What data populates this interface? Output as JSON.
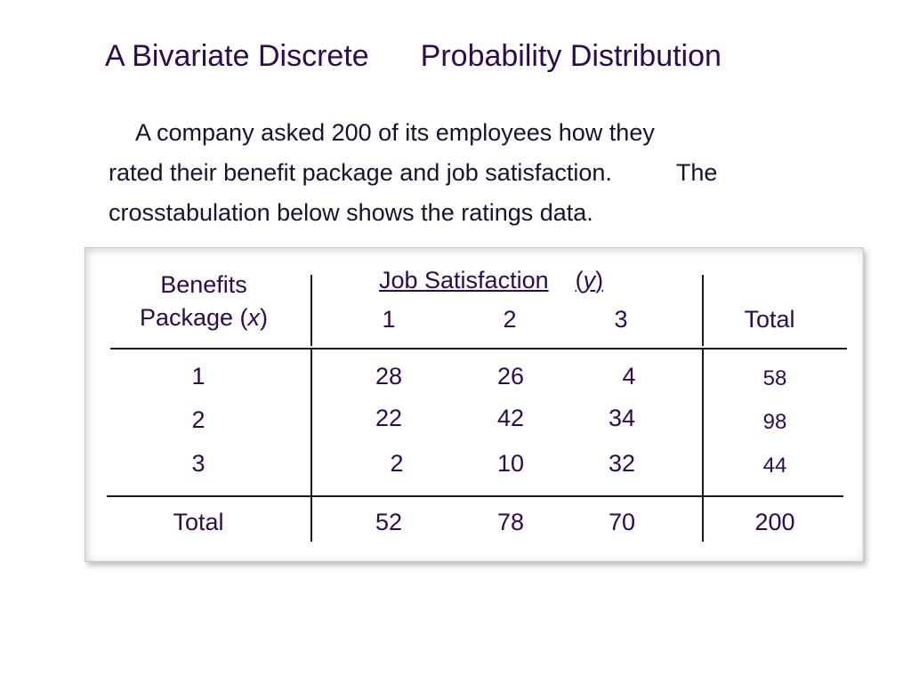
{
  "slide": {
    "title_part1": "A Bivariate Discrete",
    "title_part2": "Probability Distribution",
    "para_line1": "A company asked 200 of its employees how they",
    "para_line2a": "rated their benefit package and job satisfaction.",
    "para_line2b": "The",
    "para_line3": "crosstabulation below shows the ratings data."
  },
  "table": {
    "row_header_line1": "Benefits",
    "row_header_line2_prefix": "Package (",
    "row_header_var": "x",
    "row_header_line2_suffix": ")",
    "col_header_label": "Job Satisfaction",
    "col_header_var_open": "(",
    "col_header_var": "y",
    "col_header_var_close": ")",
    "col_values": [
      "1",
      "2",
      "3"
    ],
    "total_label": "Total",
    "rows": [
      {
        "x": "1",
        "cells": [
          "28",
          "26",
          "4"
        ],
        "total": "58"
      },
      {
        "x": "2",
        "cells": [
          "22",
          "42",
          "34"
        ],
        "total": "98"
      },
      {
        "x": "3",
        "cells": [
          "2",
          "10",
          "32"
        ],
        "total": "44"
      }
    ],
    "totals_row": {
      "label": "Total",
      "cells": [
        "52",
        "78",
        "70"
      ],
      "total": "200"
    }
  }
}
